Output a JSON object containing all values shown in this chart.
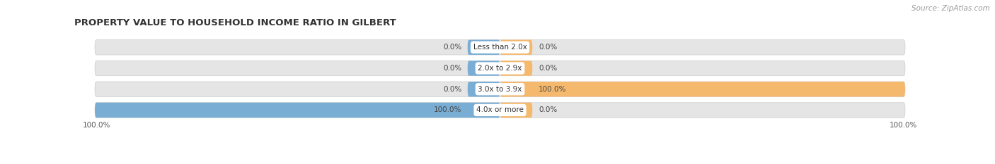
{
  "title": "PROPERTY VALUE TO HOUSEHOLD INCOME RATIO IN GILBERT",
  "source": "Source: ZipAtlas.com",
  "categories": [
    "Less than 2.0x",
    "2.0x to 2.9x",
    "3.0x to 3.9x",
    "4.0x or more"
  ],
  "without_mortgage": [
    0.0,
    0.0,
    0.0,
    100.0
  ],
  "with_mortgage": [
    0.0,
    0.0,
    100.0,
    0.0
  ],
  "color_without": "#7aadd4",
  "color_with": "#f5b96e",
  "bar_bg_color": "#e5e5e5",
  "bar_bg_border": "#cccccc",
  "label_box_color": "#ffffff",
  "figsize": [
    14.06,
    2.33
  ],
  "dpi": 100,
  "title_fontsize": 9.5,
  "label_fontsize": 7.5,
  "tick_fontsize": 7.5,
  "source_fontsize": 7.5,
  "legend_fontsize": 8
}
